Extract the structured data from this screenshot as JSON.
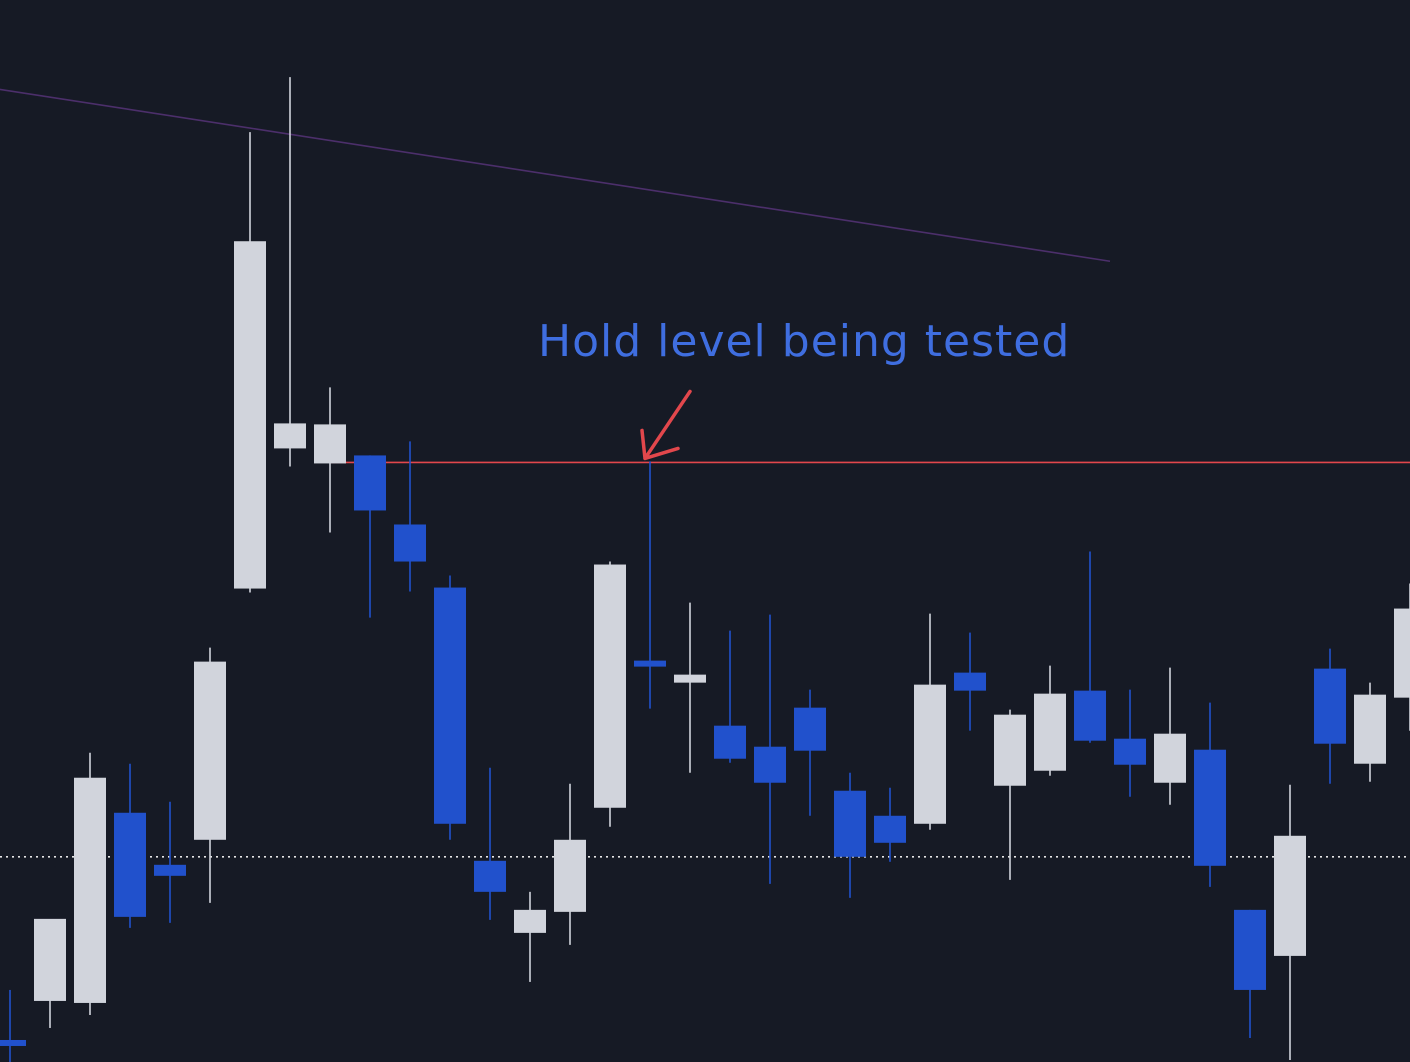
{
  "colors": {
    "background": "#161a25",
    "up": "#d1d4dc",
    "down": "#2151cc",
    "trendline": "#4c2f6b",
    "hold_level": "#e2474c",
    "arrow": "#e2474c",
    "annotation": "#3f6ee0",
    "dotted_level": "#e6e6e6"
  },
  "annotation": {
    "text": "Hold level being tested"
  },
  "chart_data": {
    "type": "candlestick",
    "title": "",
    "xlabel": "",
    "ylabel": "",
    "grid": false,
    "legend": "none",
    "x": [
      0,
      1,
      2,
      3,
      4,
      5,
      6,
      7,
      8,
      9,
      10,
      11,
      12,
      13,
      14,
      15,
      16,
      17,
      18,
      19,
      20,
      21,
      22,
      23,
      24,
      25,
      26,
      27,
      28,
      29,
      30,
      31,
      32,
      33,
      34,
      35
    ],
    "ylim": [
      11,
      1072
    ],
    "candles": [
      {
        "x": 0,
        "open": 33,
        "high": 83,
        "low": 0,
        "close": 32
      },
      {
        "x": 1,
        "open": 72,
        "high": 153,
        "low": 45,
        "close": 154
      },
      {
        "x": 2,
        "open": 70,
        "high": 320,
        "low": 58,
        "close": 295
      },
      {
        "x": 3,
        "open": 260,
        "high": 309,
        "low": 145,
        "close": 156
      },
      {
        "x": 4,
        "open": 208,
        "high": 271,
        "low": 150,
        "close": 197
      },
      {
        "x": 5,
        "open": 233,
        "high": 425,
        "low": 170,
        "close": 411
      },
      {
        "x": 6,
        "open": 484,
        "high": 940,
        "low": 480,
        "close": 831
      },
      {
        "x": 7,
        "open": 624,
        "high": 995,
        "low": 606,
        "close": 649
      },
      {
        "x": 8,
        "open": 609,
        "high": 685,
        "low": 540,
        "close": 648
      },
      {
        "x": 9,
        "open": 617,
        "high": 617,
        "low": 455,
        "close": 562
      },
      {
        "x": 10,
        "open": 548,
        "high": 631,
        "low": 481,
        "close": 511
      },
      {
        "x": 11,
        "open": 485,
        "high": 497,
        "low": 233,
        "close": 249
      },
      {
        "x": 12,
        "open": 212,
        "high": 305,
        "low": 153,
        "close": 181
      },
      {
        "x": 13,
        "open": 140,
        "high": 181,
        "low": 91,
        "close": 163
      },
      {
        "x": 14,
        "open": 161,
        "high": 289,
        "low": 128,
        "close": 233
      },
      {
        "x": 15,
        "open": 265,
        "high": 511,
        "low": 246,
        "close": 508
      },
      {
        "x": 16,
        "open": 412,
        "high": 611,
        "low": 364,
        "close": 407
      },
      {
        "x": 17,
        "open": 390,
        "high": 470,
        "low": 300,
        "close": 398
      },
      {
        "x": 18,
        "open": 347,
        "high": 442,
        "low": 310,
        "close": 314
      },
      {
        "x": 19,
        "open": 326,
        "high": 458,
        "low": 189,
        "close": 290
      },
      {
        "x": 20,
        "open": 365,
        "high": 383,
        "low": 257,
        "close": 322
      },
      {
        "x": 21,
        "open": 282,
        "high": 300,
        "low": 175,
        "close": 216
      },
      {
        "x": 22,
        "open": 257,
        "high": 285,
        "low": 211,
        "close": 230
      },
      {
        "x": 23,
        "open": 249,
        "high": 459,
        "low": 243,
        "close": 388
      },
      {
        "x": 24,
        "open": 400,
        "high": 440,
        "low": 342,
        "close": 382
      },
      {
        "x": 25,
        "open": 287,
        "high": 363,
        "low": 193,
        "close": 358
      },
      {
        "x": 26,
        "open": 302,
        "high": 407,
        "low": 297,
        "close": 379
      },
      {
        "x": 27,
        "open": 382,
        "high": 521,
        "low": 330,
        "close": 332
      },
      {
        "x": 28,
        "open": 334,
        "high": 383,
        "low": 276,
        "close": 308
      },
      {
        "x": 29,
        "open": 290,
        "high": 405,
        "low": 268,
        "close": 339
      },
      {
        "x": 30,
        "open": 323,
        "high": 370,
        "low": 186,
        "close": 207
      },
      {
        "x": 31,
        "open": 163,
        "high": 163,
        "low": 35,
        "close": 83
      },
      {
        "x": 32,
        "open": 117,
        "high": 288,
        "low": 13,
        "close": 237
      },
      {
        "x": 33,
        "open": 404,
        "high": 424,
        "low": 289,
        "close": 329
      },
      {
        "x": 34,
        "open": 309,
        "high": 390,
        "low": 291,
        "close": 378
      },
      {
        "x": 35,
        "open": 375,
        "high": 489,
        "low": 342,
        "close": 464
      }
    ],
    "hold_level": 610,
    "dotted_level": 216,
    "trendline": [
      {
        "x": -7.25,
        "y": 1026
      },
      {
        "x": 27.5,
        "y": 811
      }
    ],
    "annotation_target": {
      "x": 16,
      "y": 611
    }
  }
}
